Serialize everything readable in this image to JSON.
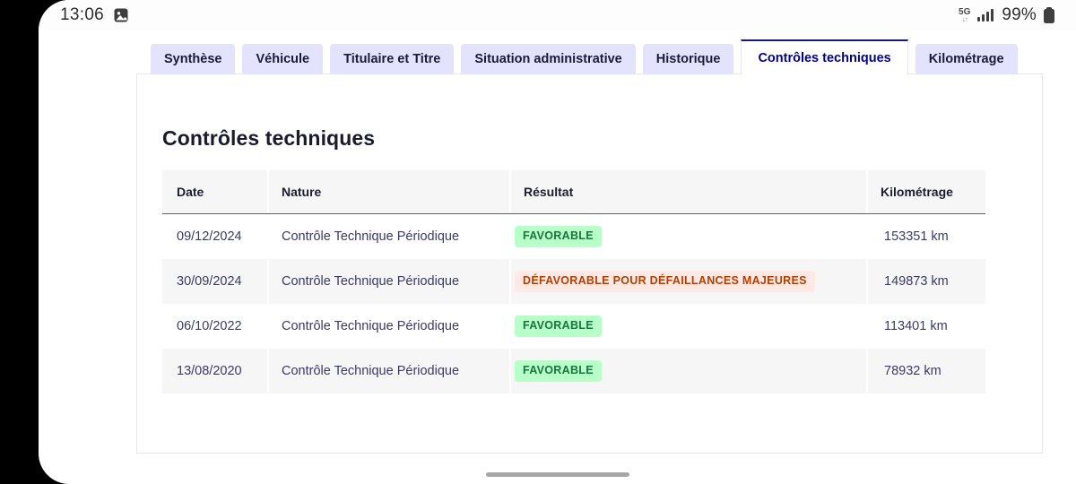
{
  "status_bar": {
    "time": "13:06",
    "network_label": "5G",
    "battery_percent": "99%"
  },
  "icons": {
    "network_arrows": "↓↑"
  },
  "tabs": [
    {
      "label": "Synthèse",
      "active": false
    },
    {
      "label": "Véhicule",
      "active": false
    },
    {
      "label": "Titulaire et Titre",
      "active": false
    },
    {
      "label": "Situation administrative",
      "active": false
    },
    {
      "label": "Historique",
      "active": false
    },
    {
      "label": "Contrôles techniques",
      "active": true
    },
    {
      "label": "Kilométrage",
      "active": false
    }
  ],
  "panel": {
    "title": "Contrôles techniques",
    "table": {
      "headers": {
        "date": "Date",
        "nature": "Nature",
        "resultat": "Résultat",
        "kilometrage": "Kilométrage"
      },
      "rows": [
        {
          "date": "09/12/2024",
          "nature": "Contrôle Technique Périodique",
          "resultat": "FAVORABLE",
          "result_style": "success",
          "kilometrage": "153351 km"
        },
        {
          "date": "30/09/2024",
          "nature": "Contrôle Technique Périodique",
          "resultat": "DÉFAVORABLE POUR DÉFAILLANCES MAJEURES",
          "result_style": "warning",
          "kilometrage": "149873 km"
        },
        {
          "date": "06/10/2022",
          "nature": "Contrôle Technique Périodique",
          "resultat": "FAVORABLE",
          "result_style": "success",
          "kilometrage": "113401 km"
        },
        {
          "date": "13/08/2020",
          "nature": "Contrôle Technique Périodique",
          "resultat": "FAVORABLE",
          "result_style": "success",
          "kilometrage": "78932 km"
        }
      ]
    }
  },
  "colors": {
    "accent": "#000091",
    "active_tab_border": "#161680",
    "tab_bg": "#e3e3fd",
    "tab_text": "#1b1b35",
    "heading_text": "#1a1a2e",
    "header_text": "#1d1d30",
    "cell_text": "#3a3a66",
    "row_alt_bg": "#f6f6f6",
    "card_border": "#e7e7e7",
    "badge_success_bg": "#b8fec9",
    "badge_success_text": "#18753c",
    "badge_warning_bg": "#ffe9e6",
    "badge_warning_text": "#b34000",
    "statusbar_text": "#2e2e2e",
    "icon_dark": "#3d3d3d"
  }
}
